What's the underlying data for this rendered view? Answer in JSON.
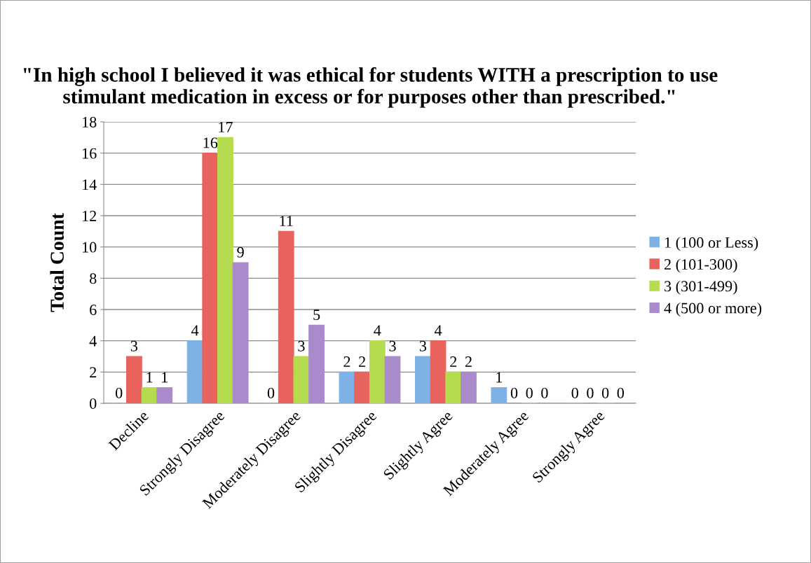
{
  "chart_data": {
    "type": "bar",
    "title": "\"In high school I believed it was ethical for students WITH a prescription to use stimulant medication in excess or for purposes other than prescribed.\"",
    "ylabel": "Total Count",
    "categories": [
      "Decline",
      "Strongly Disagree",
      "Moderately Disagree",
      "Slightly Disagree",
      "Slightly Agree",
      "Moderately Agree",
      "Strongly Agree"
    ],
    "series": [
      {
        "name": "1 (100 or Less)",
        "color": "#7eb1e6",
        "values": [
          0,
          4,
          0,
          2,
          3,
          1,
          0
        ]
      },
      {
        "name": "2 (101-300)",
        "color": "#e8625e",
        "values": [
          3,
          16,
          11,
          2,
          4,
          0,
          0
        ]
      },
      {
        "name": "3 (301-499)",
        "color": "#b5dc4e",
        "values": [
          1,
          17,
          3,
          4,
          2,
          0,
          0
        ]
      },
      {
        "name": "4 (500 or more)",
        "color": "#a98bcb",
        "values": [
          1,
          9,
          5,
          3,
          2,
          0,
          0
        ]
      }
    ],
    "ylim": [
      0,
      18
    ],
    "yticks": [
      0,
      2,
      4,
      6,
      8,
      10,
      12,
      14,
      16,
      18
    ],
    "grid": "y",
    "legend": "right",
    "data_labels": true
  }
}
